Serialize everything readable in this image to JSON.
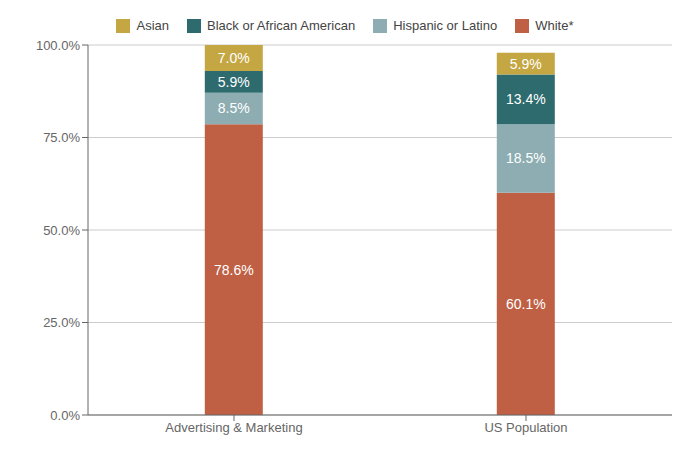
{
  "chart_data": {
    "type": "bar",
    "stacked": true,
    "data_labels": true,
    "grid": true,
    "legend": "top",
    "categories": [
      "Advertising & Marketing",
      "US Population"
    ],
    "series": [
      {
        "name": "White*",
        "color": "#bf6045",
        "values": [
          78.6,
          60.1
        ],
        "value_labels": [
          "78.6%",
          "60.1%"
        ]
      },
      {
        "name": "Hispanic or Latino",
        "color": "#8dadb2",
        "values": [
          8.5,
          18.5
        ],
        "value_labels": [
          "8.5%",
          "18.5%"
        ]
      },
      {
        "name": "Black or African American",
        "color": "#2d6b6e",
        "values": [
          5.9,
          13.4
        ],
        "value_labels": [
          "5.9%",
          "13.4%"
        ]
      },
      {
        "name": "Asian",
        "color": "#c4a642",
        "values": [
          7.0,
          5.9
        ],
        "value_labels": [
          "7.0%",
          "5.9%"
        ]
      }
    ],
    "ylim": [
      0,
      100
    ],
    "yticks": [
      {
        "value": 0,
        "label": "0.0%"
      },
      {
        "value": 25,
        "label": "25.0%"
      },
      {
        "value": 50,
        "label": "50.0%"
      },
      {
        "value": 75,
        "label": "75.0%"
      },
      {
        "value": 100,
        "label": "100.0%"
      }
    ]
  }
}
